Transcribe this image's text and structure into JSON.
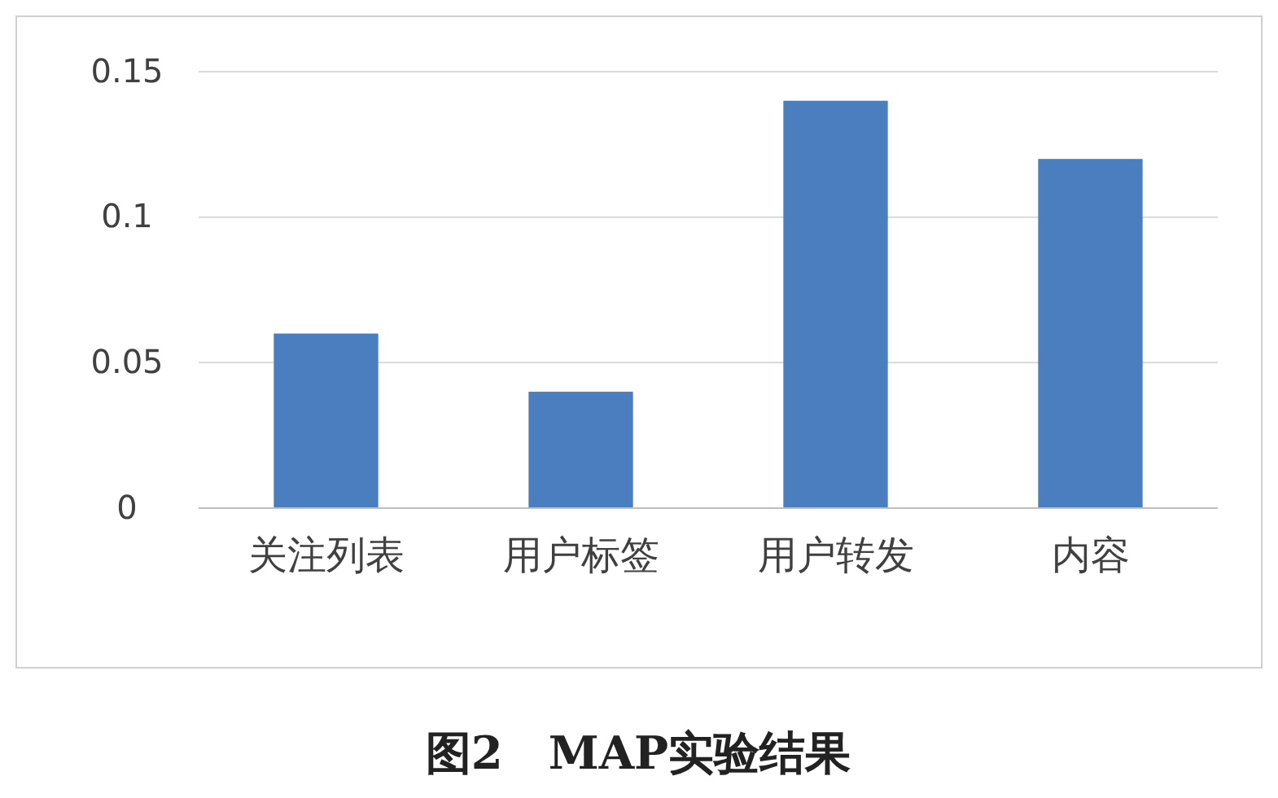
{
  "chart_data": {
    "type": "bar",
    "title": "图2　MAP实验结果",
    "categories": [
      "关注列表",
      "用户标签",
      "用户转发",
      "内容"
    ],
    "values": [
      0.06,
      0.04,
      0.14,
      0.12
    ],
    "color": "#4a7ebf",
    "ylim": [
      0,
      0.15
    ],
    "yticks": [
      0,
      0.05,
      0.1,
      0.15
    ],
    "grid": "y"
  }
}
